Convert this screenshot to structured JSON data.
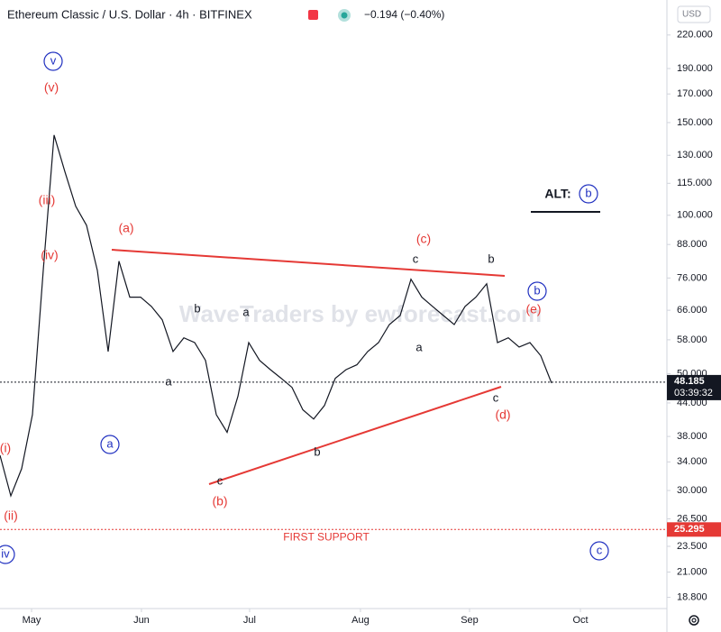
{
  "chart_data": {
    "type": "line",
    "title": "Ethereum Classic / U.S. Dollar · 4h · BITFINEX",
    "change": "−0.194 (−0.40%)",
    "currency": "USD",
    "watermark": "WaveTraders by ewforecast.com",
    "log_scale": true,
    "color": "#131722",
    "values": [
      35.0,
      29.3,
      33.0,
      41.8,
      78.6,
      142,
      121,
      104,
      95.7,
      78.6,
      55.1,
      81.8,
      69.9,
      69.9,
      67.1,
      63.3,
      55.1,
      58.5,
      57.3,
      53.0,
      41.8,
      38.7,
      45.3,
      57.3,
      53.0,
      50.9,
      49.0,
      47.1,
      42.7,
      41.0,
      43.5,
      49.0,
      50.9,
      52.0,
      55.1,
      57.3,
      62.0,
      64.5,
      75.6,
      69.9,
      67.1,
      64.5,
      62.0,
      67.1,
      69.9,
      74.1,
      57.3,
      58.5,
      56.2,
      57.3,
      54.1,
      48.0
    ],
    "xlim": [
      0,
      61.67
    ],
    "xticks": [
      {
        "value": 2.92,
        "label": "May"
      },
      {
        "value": 13.08,
        "label": "Jun"
      },
      {
        "value": 23.08,
        "label": "Jul"
      },
      {
        "value": 33.33,
        "label": "Aug"
      },
      {
        "value": 43.42,
        "label": "Sep"
      },
      {
        "value": 53.67,
        "label": "Oct"
      }
    ],
    "ylim": [
      17.9,
      256.4
    ],
    "yticks": [
      {
        "value": 18.8,
        "label": "18.800"
      },
      {
        "value": 21,
        "label": "21.000"
      },
      {
        "value": 23.5,
        "label": "23.500"
      },
      {
        "value": 26.5,
        "label": "26.500"
      },
      {
        "value": 30,
        "label": "30.000"
      },
      {
        "value": 34,
        "label": "34.000"
      },
      {
        "value": 38,
        "label": "38.000"
      },
      {
        "value": 44,
        "label": "44.000"
      },
      {
        "value": 50,
        "label": "50.000"
      },
      {
        "value": 58,
        "label": "58.000"
      },
      {
        "value": 66,
        "label": "66.000"
      },
      {
        "value": 76,
        "label": "76.000"
      },
      {
        "value": 88,
        "label": "88.000"
      },
      {
        "value": 100,
        "label": "100.000"
      },
      {
        "value": 115,
        "label": "115.000"
      },
      {
        "value": 130,
        "label": "130.000"
      },
      {
        "value": 150,
        "label": "150.000"
      },
      {
        "value": 170,
        "label": "170.000"
      },
      {
        "value": 190,
        "label": "190.000"
      },
      {
        "value": 220,
        "label": "220.000"
      }
    ],
    "last_price": {
      "value": 48.185,
      "label": "48.185"
    },
    "countdown": "03:39:32",
    "support": {
      "value": 25.295,
      "label": "25.295",
      "name": "FIRST SUPPORT"
    },
    "annotations": [
      {
        "text": "v",
        "style": "circle"
      },
      {
        "text": "(v)",
        "style": "red"
      },
      {
        "text": "(iii)",
        "style": "red"
      },
      {
        "text": "(iv)",
        "style": "red"
      },
      {
        "text": "(i)",
        "style": "red"
      },
      {
        "text": "(ii)",
        "style": "red"
      },
      {
        "text": "iv",
        "style": "circle"
      },
      {
        "text": "a",
        "style": "circle"
      },
      {
        "text": "(a)",
        "style": "red"
      },
      {
        "text": "(b)",
        "style": "red"
      },
      {
        "text": "(c)",
        "style": "red"
      },
      {
        "text": "(d)",
        "style": "red"
      },
      {
        "text": "(e)",
        "style": "red"
      },
      {
        "text": "b",
        "style": "circle"
      },
      {
        "text": "c",
        "style": "circle"
      },
      {
        "text": "b",
        "style": "plain"
      },
      {
        "text": "a",
        "style": "plain"
      },
      {
        "text": "c",
        "style": "plain"
      },
      {
        "text": "a",
        "style": "plain"
      },
      {
        "text": "b",
        "style": "plain"
      },
      {
        "text": "c",
        "style": "plain"
      },
      {
        "text": "a",
        "style": "plain"
      },
      {
        "text": "b",
        "style": "plain"
      },
      {
        "text": "c",
        "style": "plain"
      },
      {
        "text": "ALT:",
        "style": "bold"
      },
      {
        "text": "b",
        "style": "circle"
      }
    ]
  }
}
